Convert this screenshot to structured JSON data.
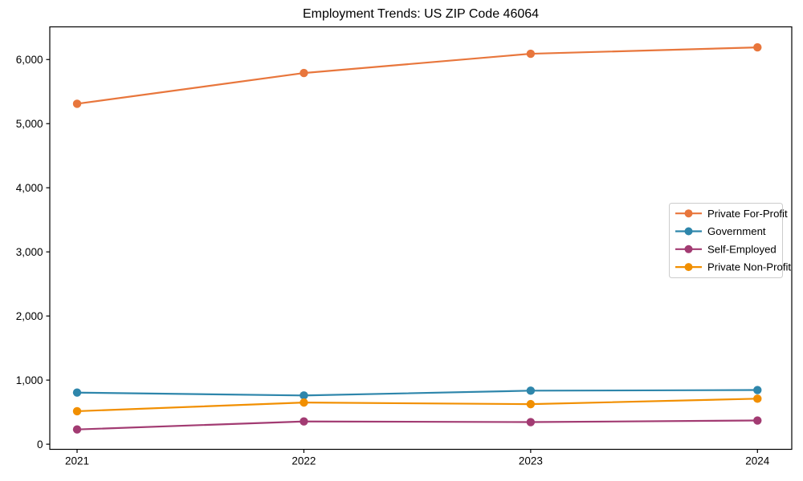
{
  "chart_data": {
    "type": "line",
    "title": "Employment Trends: US ZIP Code 46064",
    "xlabel": "",
    "ylabel": "",
    "x_categories": [
      "2021",
      "2022",
      "2023",
      "2024"
    ],
    "series": [
      {
        "name": "Private For-Profit",
        "color": "#E8763C",
        "values": [
          5310,
          5790,
          6090,
          6190
        ]
      },
      {
        "name": "Government",
        "color": "#2E86AB",
        "values": [
          805,
          760,
          835,
          845
        ]
      },
      {
        "name": "Self-Employed",
        "color": "#A23B72",
        "values": [
          230,
          355,
          345,
          370
        ]
      },
      {
        "name": "Private Non-Profit",
        "color": "#F18F01",
        "values": [
          515,
          650,
          625,
          710
        ]
      }
    ],
    "yticks": [
      0,
      1000,
      2000,
      3000,
      4000,
      5000,
      6000
    ],
    "ytick_labels": [
      "0",
      "1,000",
      "2,000",
      "3,000",
      "4,000",
      "5,000",
      "6,000"
    ],
    "ylim": [
      -80,
      6510
    ],
    "grid": false,
    "legend_position": "center-right",
    "axis_color": "#000000",
    "text_color": "#000000",
    "legend_border_color": "#cccccc",
    "background_color": "#ffffff"
  }
}
